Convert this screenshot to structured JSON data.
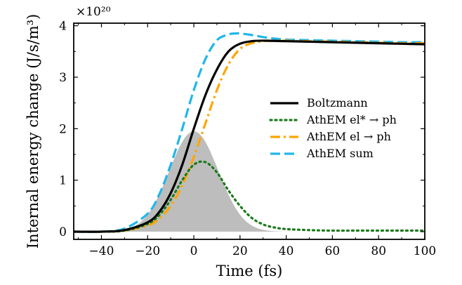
{
  "chart_data": {
    "type": "line",
    "xlabel": "Time (fs)",
    "ylabel": "Internal energy change (J/s/m³)",
    "y_multiplier": "×10²⁰",
    "xlim": [
      -52,
      100
    ],
    "ylim": [
      -0.15,
      4.05
    ],
    "xticks": [
      -40,
      -20,
      0,
      20,
      40,
      60,
      80,
      100
    ],
    "yticks": [
      0,
      1,
      2,
      3,
      4
    ],
    "grid": false,
    "legend_position": "center-right",
    "shaded_pulse": {
      "color": "#bdbdbd",
      "center": 0,
      "peak": 1.95,
      "fwhm": 25
    },
    "series": [
      {
        "name": "Boltzmann",
        "color": "#000000",
        "style": "solid",
        "x": [
          -52,
          -40,
          -30,
          -20,
          -15,
          -10,
          -5,
          0,
          5,
          10,
          15,
          20,
          25,
          30,
          40,
          50,
          60,
          70,
          80,
          90,
          100
        ],
        "y": [
          0.0,
          0.0,
          0.03,
          0.18,
          0.38,
          0.75,
          1.3,
          2.0,
          2.65,
          3.15,
          3.5,
          3.65,
          3.7,
          3.71,
          3.7,
          3.69,
          3.68,
          3.67,
          3.66,
          3.65,
          3.64
        ]
      },
      {
        "name": "AthEM el* → ph",
        "color": "#1a7a1a",
        "style": "dotted",
        "x": [
          -52,
          -40,
          -30,
          -20,
          -15,
          -10,
          -5,
          0,
          5,
          10,
          15,
          20,
          25,
          30,
          35,
          40,
          50,
          60,
          70,
          80,
          90,
          100
        ],
        "y": [
          0.0,
          0.0,
          0.02,
          0.15,
          0.32,
          0.62,
          1.0,
          1.3,
          1.35,
          1.15,
          0.8,
          0.5,
          0.27,
          0.14,
          0.08,
          0.05,
          0.03,
          0.02,
          0.02,
          0.02,
          0.02,
          0.02
        ]
      },
      {
        "name": "AthEM el → ph",
        "color": "#ffa500",
        "style": "dashdot",
        "x": [
          -52,
          -40,
          -30,
          -20,
          -15,
          -10,
          -5,
          0,
          5,
          10,
          15,
          20,
          25,
          30,
          35,
          40,
          50,
          60,
          70,
          80,
          90,
          100
        ],
        "y": [
          0.0,
          0.0,
          0.02,
          0.12,
          0.25,
          0.5,
          0.9,
          1.45,
          2.1,
          2.75,
          3.25,
          3.55,
          3.66,
          3.7,
          3.71,
          3.71,
          3.7,
          3.69,
          3.68,
          3.67,
          3.66,
          3.66
        ]
      },
      {
        "name": "AthEM sum",
        "color": "#1fb7ea",
        "style": "dashed",
        "x": [
          -52,
          -40,
          -30,
          -20,
          -15,
          -10,
          -5,
          0,
          5,
          10,
          15,
          18,
          20,
          25,
          30,
          35,
          40,
          50,
          60,
          70,
          80,
          90,
          100
        ],
        "y": [
          0.0,
          0.0,
          0.06,
          0.35,
          0.72,
          1.3,
          2.0,
          2.75,
          3.35,
          3.72,
          3.83,
          3.85,
          3.85,
          3.82,
          3.78,
          3.75,
          3.73,
          3.72,
          3.71,
          3.7,
          3.69,
          3.68,
          3.68
        ]
      }
    ]
  }
}
